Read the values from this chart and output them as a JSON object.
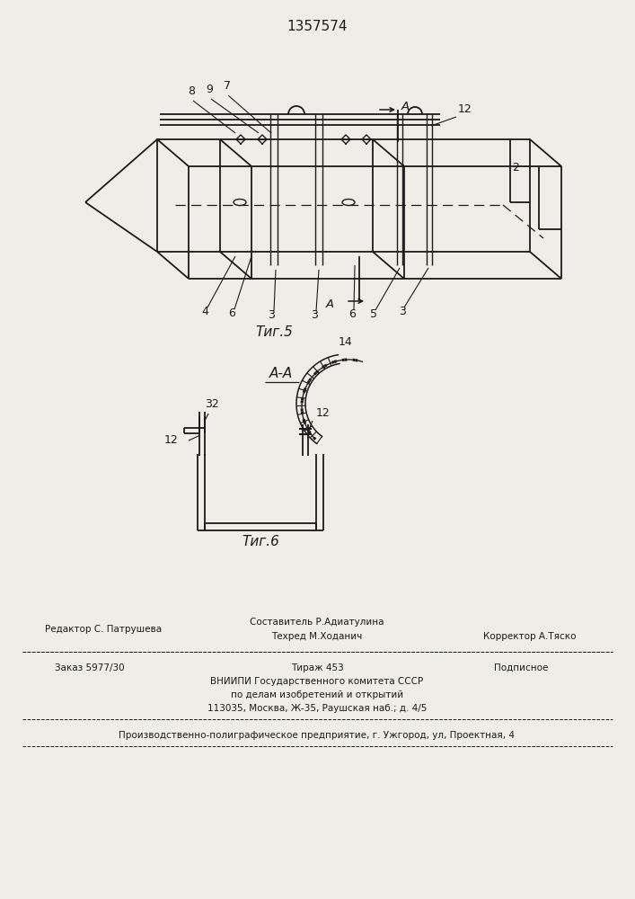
{
  "patent_number": "1357574",
  "fig5_label": "Τиг.5",
  "fig6_label": "Τиг.6",
  "background": "#f0ede8",
  "line_color": "#1a1a1a",
  "text_color": "#1a1a1a",
  "footer": {
    "editor": "Редактор С. Патрушева",
    "composer": "Составитель Р.Адиатулина",
    "techred": "Техред М.Ходанич",
    "corrector": "Корректор А.Тяско",
    "order": "Заказ 5977/30",
    "tirazh": "Тираж 453",
    "podpisnoe": "Подписное",
    "vnipi": "ВНИИПИ Государственного комитета СССР",
    "po_delam": "по делам изобретений и открытий",
    "address": "113035, Москва, Ж-35, Раушская наб.; д. 4/5",
    "proizv": "Производственно-полиграфическое предприятие, г. Ужгород, ул, Проектная, 4"
  }
}
